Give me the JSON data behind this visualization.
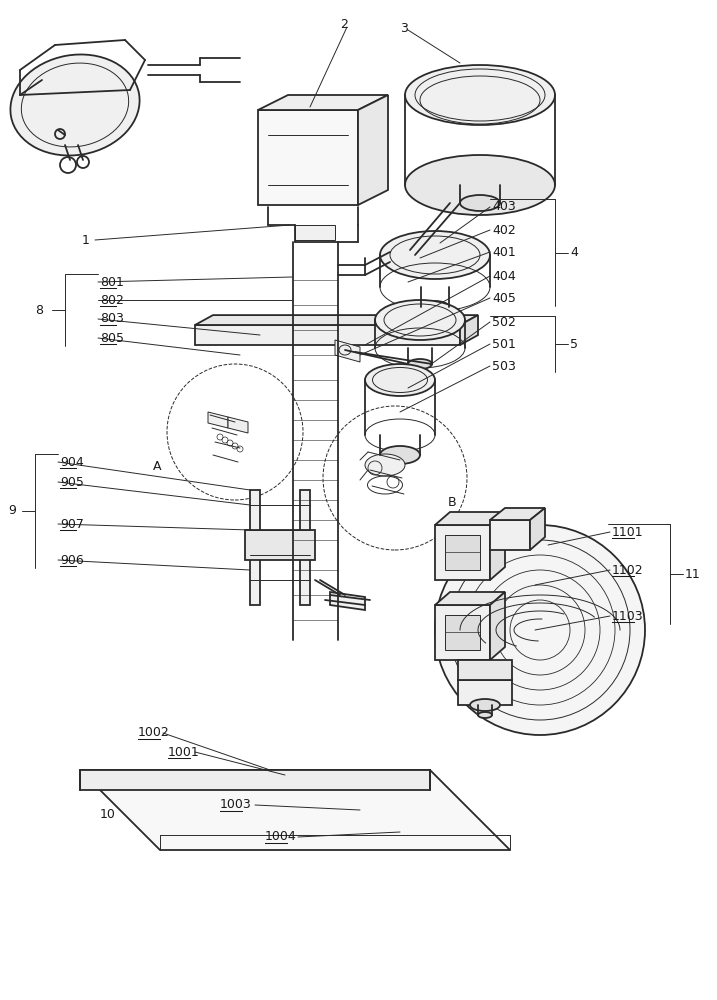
{
  "bg_color": "#ffffff",
  "line_color": "#2a2a2a",
  "label_color": "#1a1a1a",
  "underline_labels": [
    "801",
    "802",
    "803",
    "805",
    "904",
    "905",
    "907",
    "906",
    "1002",
    "1001",
    "1003",
    "1004",
    "1101",
    "1102",
    "1103"
  ],
  "plain_labels": [
    "1",
    "2",
    "3",
    "4",
    "5",
    "8",
    "9",
    "10",
    "11",
    "A",
    "B",
    "401",
    "402",
    "403",
    "404",
    "405",
    "501",
    "502",
    "503"
  ],
  "figsize": [
    7.17,
    10.0
  ],
  "dpi": 100,
  "lw_main": 1.3,
  "lw_thin": 0.7,
  "lw_ann": 0.7,
  "fs": 9
}
